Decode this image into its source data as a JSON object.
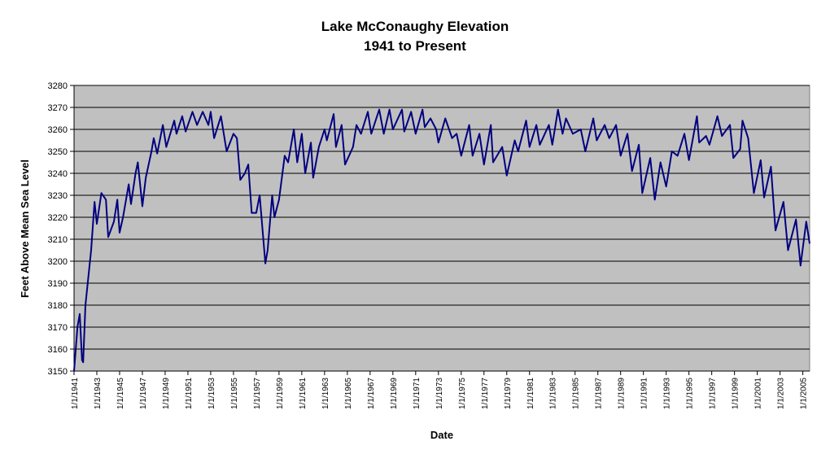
{
  "chart_data": {
    "type": "line",
    "title": "Lake McConaughy Elevation",
    "subtitle": "1941 to Present",
    "x_label": "Date",
    "y_label": "Feet Above Mean Sea Level",
    "plot_background": "#c0c0c0",
    "grid": true,
    "xlim": [
      1941,
      2005.6
    ],
    "ylim": [
      3150,
      3280
    ],
    "yticks": [
      3150,
      3160,
      3170,
      3180,
      3190,
      3200,
      3210,
      3220,
      3230,
      3240,
      3250,
      3260,
      3270,
      3280
    ],
    "xticks": [
      {
        "value": 1941,
        "label": "1/1/1941"
      },
      {
        "value": 1943,
        "label": "1/1/1943"
      },
      {
        "value": 1945,
        "label": "1/1/1945"
      },
      {
        "value": 1947,
        "label": "1/1/1947"
      },
      {
        "value": 1949,
        "label": "1/1/1949"
      },
      {
        "value": 1951,
        "label": "1/1/1951"
      },
      {
        "value": 1953,
        "label": "1/1/1953"
      },
      {
        "value": 1955,
        "label": "1/1/1955"
      },
      {
        "value": 1957,
        "label": "1/1/1957"
      },
      {
        "value": 1959,
        "label": "1/1/1959"
      },
      {
        "value": 1961,
        "label": "1/1/1961"
      },
      {
        "value": 1963,
        "label": "1/1/1963"
      },
      {
        "value": 1965,
        "label": "1/1/1965"
      },
      {
        "value": 1967,
        "label": "1/1/1967"
      },
      {
        "value": 1969,
        "label": "1/1/1969"
      },
      {
        "value": 1971,
        "label": "1/1/1971"
      },
      {
        "value": 1973,
        "label": "1/1/1973"
      },
      {
        "value": 1975,
        "label": "1/1/1975"
      },
      {
        "value": 1977,
        "label": "1/1/1977"
      },
      {
        "value": 1979,
        "label": "1/1/1979"
      },
      {
        "value": 1981,
        "label": "1/1/1981"
      },
      {
        "value": 1983,
        "label": "1/1/1983"
      },
      {
        "value": 1985,
        "label": "1/1/1985"
      },
      {
        "value": 1987,
        "label": "1/1/1987"
      },
      {
        "value": 1989,
        "label": "1/1/1989"
      },
      {
        "value": 1991,
        "label": "1/1/1991"
      },
      {
        "value": 1993,
        "label": "1/1/1993"
      },
      {
        "value": 1995,
        "label": "1/1/1995"
      },
      {
        "value": 1997,
        "label": "1/1/1997"
      },
      {
        "value": 1999,
        "label": "1/1/1999"
      },
      {
        "value": 2001,
        "label": "1/1/2001"
      },
      {
        "value": 2003,
        "label": "1/1/2003"
      },
      {
        "value": 2005,
        "label": "1/1/2005"
      }
    ],
    "x": [
      1941.0,
      1941.3,
      1941.5,
      1941.7,
      1941.8,
      1942.0,
      1942.5,
      1942.8,
      1943.0,
      1943.4,
      1943.8,
      1944.0,
      1944.5,
      1944.8,
      1945.0,
      1945.3,
      1945.8,
      1946.0,
      1946.4,
      1946.6,
      1947.0,
      1947.3,
      1947.8,
      1948.0,
      1948.3,
      1948.8,
      1949.1,
      1949.8,
      1950.0,
      1950.5,
      1950.8,
      1951.4,
      1951.8,
      1952.3,
      1952.8,
      1953.0,
      1953.3,
      1953.9,
      1954.4,
      1955.0,
      1955.3,
      1955.6,
      1956.0,
      1956.3,
      1956.6,
      1957.0,
      1957.3,
      1957.8,
      1958.0,
      1958.4,
      1958.6,
      1959.0,
      1959.5,
      1959.8,
      1960.3,
      1960.6,
      1961.0,
      1961.3,
      1961.8,
      1962.0,
      1962.5,
      1963.0,
      1963.2,
      1963.8,
      1964.0,
      1964.5,
      1964.8,
      1965.5,
      1965.8,
      1966.2,
      1966.8,
      1967.1,
      1967.8,
      1968.2,
      1968.7,
      1969.0,
      1969.8,
      1970.0,
      1970.6,
      1971.0,
      1971.6,
      1971.8,
      1972.3,
      1972.8,
      1973.0,
      1973.6,
      1974.2,
      1974.6,
      1975.0,
      1975.7,
      1976.0,
      1976.6,
      1977.0,
      1977.6,
      1977.8,
      1978.6,
      1979.0,
      1979.7,
      1980.0,
      1980.7,
      1981.0,
      1981.6,
      1981.9,
      1982.7,
      1983.0,
      1983.5,
      1983.9,
      1984.2,
      1984.8,
      1985.5,
      1985.9,
      1986.6,
      1986.9,
      1987.6,
      1988.0,
      1988.6,
      1989.0,
      1989.6,
      1990.0,
      1990.6,
      1990.9,
      1991.6,
      1992.0,
      1992.5,
      1993.0,
      1993.5,
      1994.0,
      1994.6,
      1995.0,
      1995.7,
      1995.9,
      1996.5,
      1996.8,
      1997.5,
      1997.9,
      1998.6,
      1998.9,
      1999.5,
      1999.7,
      2000.2,
      2000.7,
      2001.3,
      2001.6,
      2002.2,
      2002.6,
      2003.3,
      2003.7,
      2004.4,
      2004.8,
      2005.3,
      2005.6
    ],
    "series": [
      {
        "color": "#000080",
        "values": [
          3150,
          3170,
          3176,
          3155,
          3154,
          3180,
          3205,
          3227,
          3217,
          3231,
          3228,
          3211,
          3218,
          3228,
          3213,
          3220,
          3235,
          3226,
          3240,
          3245,
          3225,
          3238,
          3250,
          3256,
          3249,
          3262,
          3252,
          3264,
          3258,
          3266,
          3259,
          3268,
          3262,
          3268,
          3262,
          3268,
          3256,
          3266,
          3250,
          3258,
          3256,
          3237,
          3240,
          3244,
          3222,
          3222,
          3230,
          3199,
          3205,
          3230,
          3220,
          3228,
          3248,
          3245,
          3260,
          3245,
          3258,
          3240,
          3254,
          3238,
          3252,
          3260,
          3255,
          3267,
          3252,
          3262,
          3244,
          3252,
          3262,
          3258,
          3268,
          3258,
          3269,
          3258,
          3269,
          3260,
          3269,
          3259,
          3268,
          3258,
          3269,
          3261,
          3265,
          3260,
          3254,
          3265,
          3256,
          3258,
          3248,
          3262,
          3248,
          3258,
          3244,
          3262,
          3245,
          3252,
          3239,
          3255,
          3250,
          3264,
          3252,
          3262,
          3253,
          3262,
          3253,
          3269,
          3258,
          3265,
          3258,
          3260,
          3250,
          3265,
          3255,
          3262,
          3256,
          3262,
          3248,
          3258,
          3241,
          3253,
          3231,
          3247,
          3228,
          3245,
          3234,
          3250,
          3248,
          3258,
          3246,
          3266,
          3254,
          3257,
          3253,
          3266,
          3257,
          3262,
          3247,
          3251,
          3264,
          3256,
          3231,
          3246,
          3229,
          3243,
          3214,
          3227,
          3205,
          3219,
          3198,
          3218,
          3208
        ]
      }
    ]
  }
}
